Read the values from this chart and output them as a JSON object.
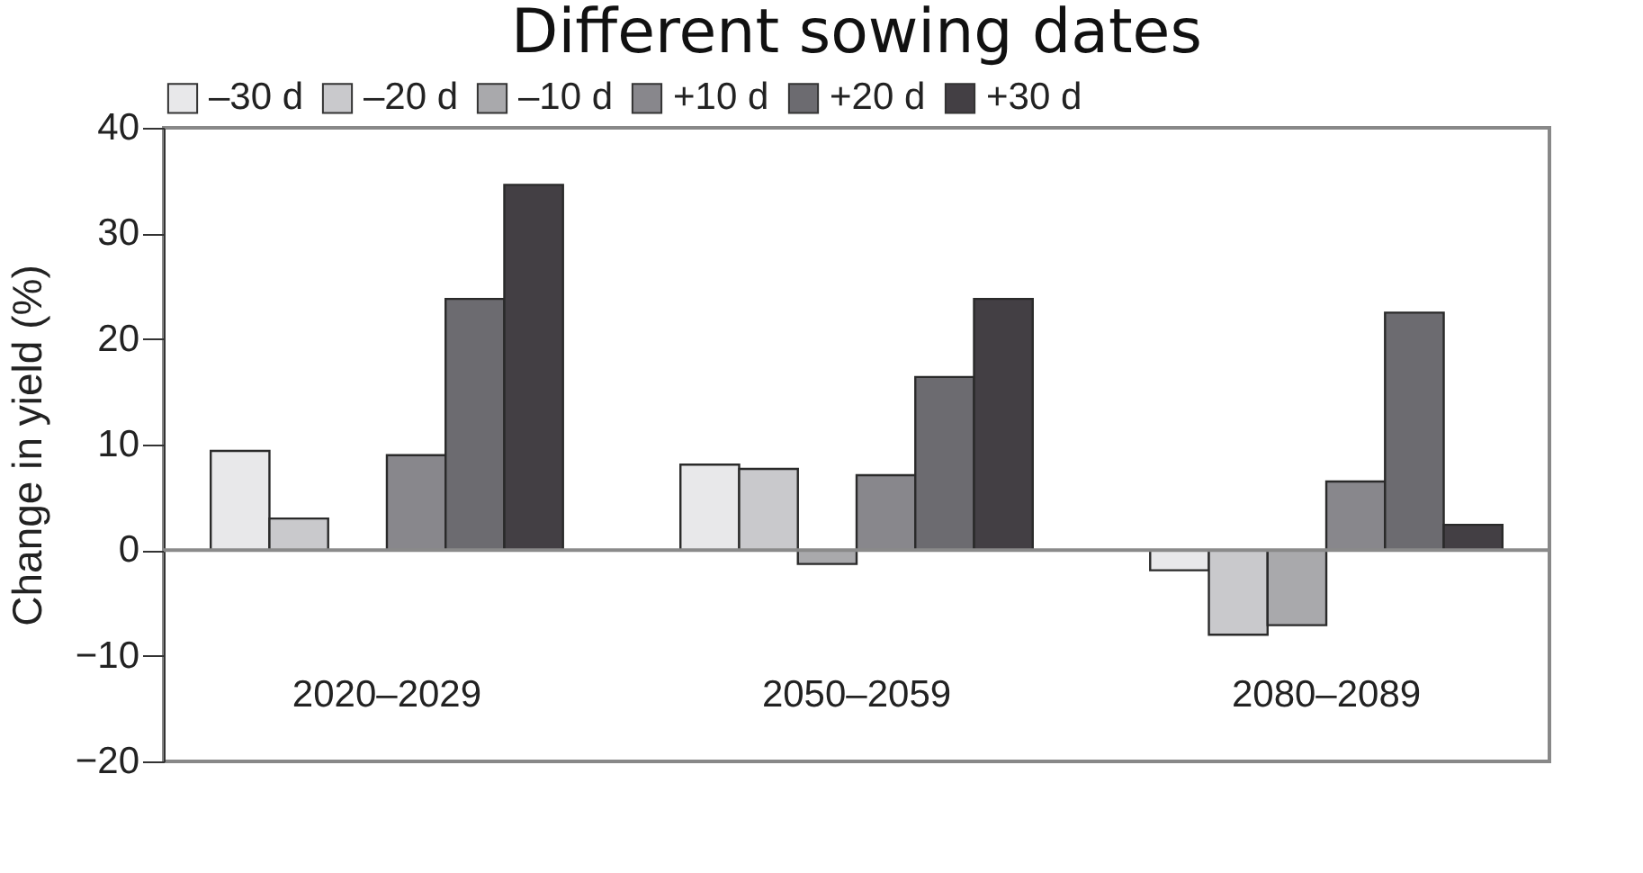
{
  "chart_data": {
    "type": "bar",
    "title": "Different sowing dates",
    "ylabel": "Change in yield (%)",
    "categories": [
      "2020–2029",
      "2050–2059",
      "2080–2089"
    ],
    "series": [
      {
        "name": "–30 d",
        "color": "#e8e8ea",
        "values": [
          9.4,
          8.1,
          -1.9
        ]
      },
      {
        "name": "–20 d",
        "color": "#c9c9cc",
        "values": [
          3.0,
          7.7,
          -8.0
        ]
      },
      {
        "name": "–10 d",
        "color": "#a9a9ac",
        "values": [
          null,
          -1.3,
          -7.1
        ]
      },
      {
        "name": "+10 d",
        "color": "#88878c",
        "values": [
          9.0,
          7.1,
          6.5
        ]
      },
      {
        "name": "+20 d",
        "color": "#6c6b70",
        "values": [
          23.8,
          16.4,
          22.5
        ]
      },
      {
        "name": "+30 d",
        "color": "#433f44",
        "values": [
          34.6,
          23.8,
          2.4
        ]
      }
    ],
    "ylim": [
      -20,
      40
    ],
    "yticks": [
      -20,
      -10,
      0,
      10,
      20,
      30,
      40
    ],
    "ref_lines": [
      {
        "axis": "y",
        "value": 0,
        "color": "#8a8a8a"
      }
    ],
    "legend": "top",
    "grid": false
  }
}
